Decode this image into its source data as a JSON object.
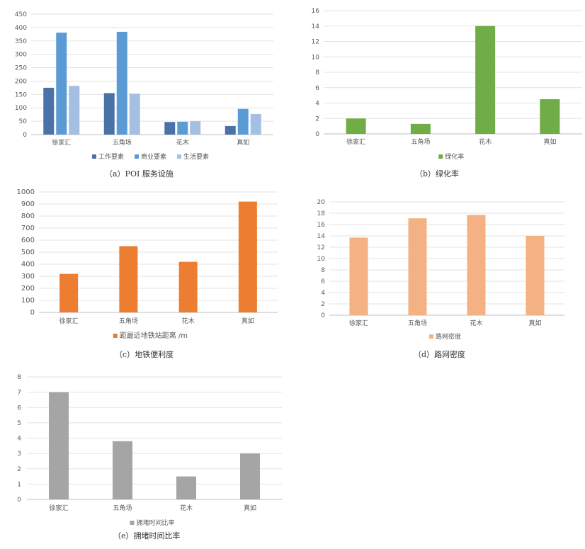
{
  "captions": {
    "a": "（a）POI 服务设施",
    "b": "（b）绿化率",
    "c": "（c）地铁便利度",
    "d": "（d）路网密度",
    "e": "（e）拥堵时间比率"
  },
  "chart_data": [
    {
      "id": "a",
      "type": "bar",
      "categories": [
        "徐家汇",
        "五角场",
        "花木",
        "真如"
      ],
      "series": [
        {
          "name": "工作要素",
          "color": "#4a72a6",
          "values": [
            175,
            155,
            47,
            32
          ]
        },
        {
          "name": "商业要素",
          "color": "#5b9bd5",
          "values": [
            381,
            384,
            48,
            96
          ]
        },
        {
          "name": "生活要素",
          "color": "#a5bfe3",
          "values": [
            182,
            153,
            50,
            77
          ]
        }
      ],
      "ylim": [
        0,
        450
      ],
      "yticks": [
        0,
        50,
        100,
        150,
        200,
        250,
        300,
        350,
        400,
        450
      ],
      "grid": true,
      "legend": "bottom"
    },
    {
      "id": "b",
      "type": "bar",
      "categories": [
        "徐家汇",
        "五角场",
        "花木",
        "真如"
      ],
      "series": [
        {
          "name": "绿化率",
          "color": "#70ad47",
          "values": [
            2.0,
            1.3,
            14.0,
            4.5
          ]
        }
      ],
      "ylim": [
        0,
        16
      ],
      "yticks": [
        0,
        2,
        4,
        6,
        8,
        10,
        12,
        14,
        16
      ],
      "grid": true,
      "legend": "bottom"
    },
    {
      "id": "c",
      "type": "bar",
      "categories": [
        "徐家汇",
        "五角场",
        "花木",
        "真如"
      ],
      "series": [
        {
          "name": "距最近地铁站距离 /m",
          "color": "#ed7d31",
          "values": [
            320,
            550,
            420,
            920
          ]
        }
      ],
      "ylim": [
        0,
        1000
      ],
      "yticks": [
        0,
        100,
        200,
        300,
        400,
        500,
        600,
        700,
        800,
        900,
        1000
      ],
      "grid": true,
      "legend": "bottom"
    },
    {
      "id": "d",
      "type": "bar",
      "categories": [
        "徐家汇",
        "五角场",
        "花木",
        "真如"
      ],
      "series": [
        {
          "name": "路网密度",
          "color": "#f4b183",
          "values": [
            13.7,
            17.1,
            17.7,
            14.0
          ]
        }
      ],
      "ylim": [
        0,
        20
      ],
      "yticks": [
        0,
        2,
        4,
        6,
        8,
        10,
        12,
        14,
        16,
        18,
        20
      ],
      "grid": true,
      "legend": "bottom"
    },
    {
      "id": "e",
      "type": "bar",
      "categories": [
        "徐家汇",
        "五角场",
        "花木",
        "真如"
      ],
      "series": [
        {
          "name": "拥堵时间比率",
          "color": "#a5a5a5",
          "values": [
            7.0,
            3.8,
            1.5,
            3.0
          ]
        }
      ],
      "ylim": [
        0,
        8
      ],
      "yticks": [
        0,
        1,
        2,
        3,
        4,
        5,
        6,
        7,
        8
      ],
      "grid": true,
      "legend": "bottom"
    }
  ]
}
